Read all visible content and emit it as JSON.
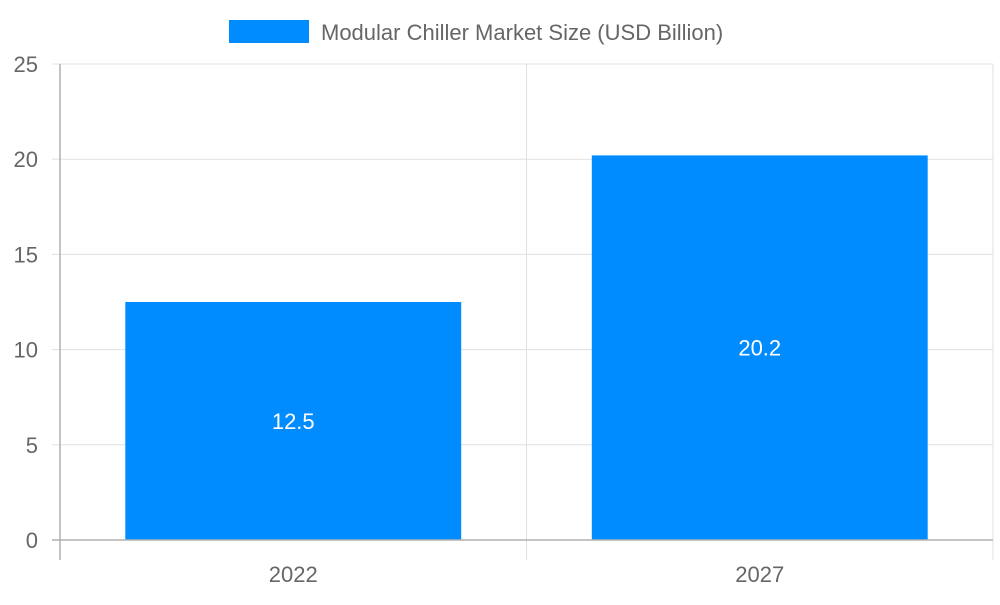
{
  "chart_data": {
    "type": "bar",
    "categories": [
      "2022",
      "2027"
    ],
    "series": [
      {
        "name": "Modular Chiller Market Size (USD Billion)",
        "values": [
          12.5,
          20.2
        ],
        "color": "#008cff"
      }
    ],
    "data_labels": [
      "12.5",
      "20.2"
    ],
    "ylim": [
      0,
      25
    ],
    "yticks": [
      "0",
      "5",
      "10",
      "15",
      "20",
      "25"
    ],
    "grid": true,
    "legend_position": "top-center",
    "colors": {
      "bar": "#008cff",
      "grid": "#e0e0e0",
      "axis": "#b0b0b0",
      "text": "#666666",
      "label": "#ffffff"
    }
  }
}
